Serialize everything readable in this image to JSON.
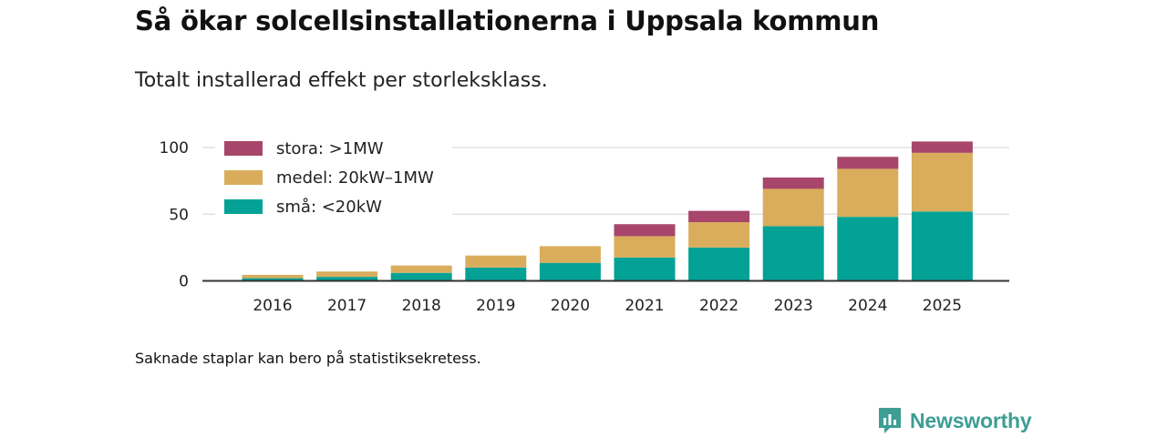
{
  "title": "Så ökar solcellsinstallationerna i Uppsala kommun",
  "subtitle": "Totalt installerad effekt per storleksklass.",
  "footnote": "Saknade staplar kan bero på statistiksekretess.",
  "brand": {
    "name": "Newsworthy",
    "color": "#3d9e94"
  },
  "chart_data": {
    "type": "bar",
    "stacked": true,
    "categories": [
      "2016",
      "2017",
      "2018",
      "2019",
      "2020",
      "2021",
      "2022",
      "2023",
      "2024",
      "2025"
    ],
    "series": [
      {
        "name": "små: <20kW",
        "color": "#04a296",
        "values": [
          2,
          3,
          6,
          10,
          13.5,
          17.5,
          25,
          41,
          48,
          52
        ]
      },
      {
        "name": "medel: 20kW–1MW",
        "color": "#d9ad5c",
        "values": [
          2.5,
          4,
          5.5,
          9,
          12.5,
          16,
          19,
          28,
          36,
          44
        ]
      },
      {
        "name": "stora: >1MW",
        "color": "#a7466a",
        "values": [
          0,
          0,
          0,
          0,
          0,
          9,
          8.5,
          8.5,
          9,
          8.5
        ]
      }
    ],
    "legend_order": [
      2,
      1,
      0
    ],
    "yticks": [
      0,
      50,
      100
    ],
    "ylim": [
      0,
      104
    ],
    "xlabel": "",
    "ylabel": "",
    "grid": true,
    "legend_position": "top-left"
  }
}
